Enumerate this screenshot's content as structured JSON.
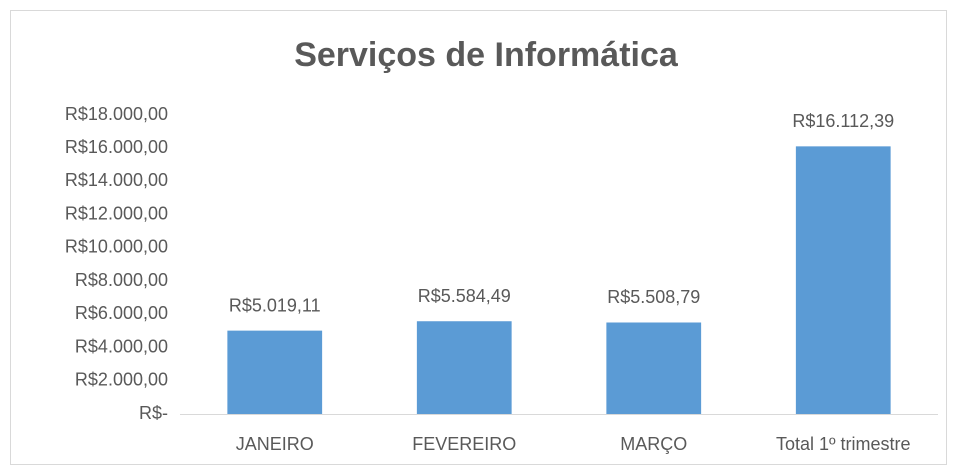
{
  "chart_data": {
    "type": "bar",
    "title": "Serviços de Informática",
    "categories": [
      "JANEIRO",
      "FEVEREIRO",
      "MARÇO",
      "Total 1º trimestre"
    ],
    "values": [
      5019.11,
      5584.49,
      5508.79,
      16112.39
    ],
    "value_labels": [
      "R$5.019,11",
      "R$5.584,49",
      "R$5.508,79",
      "R$16.112,39"
    ],
    "color": "#5b9bd5",
    "ylim": [
      0,
      18000
    ],
    "yticks": [
      {
        "value": 0,
        "label": "R$-"
      },
      {
        "value": 2000,
        "label": "R$2.000,00"
      },
      {
        "value": 4000,
        "label": "R$4.000,00"
      },
      {
        "value": 6000,
        "label": "R$6.000,00"
      },
      {
        "value": 8000,
        "label": "R$8.000,00"
      },
      {
        "value": 10000,
        "label": "R$10.000,00"
      },
      {
        "value": 12000,
        "label": "R$12.000,00"
      },
      {
        "value": 14000,
        "label": "R$14.000,00"
      },
      {
        "value": 16000,
        "label": "R$16.000,00"
      },
      {
        "value": 18000,
        "label": "R$18.000,00"
      }
    ],
    "grid": false
  }
}
